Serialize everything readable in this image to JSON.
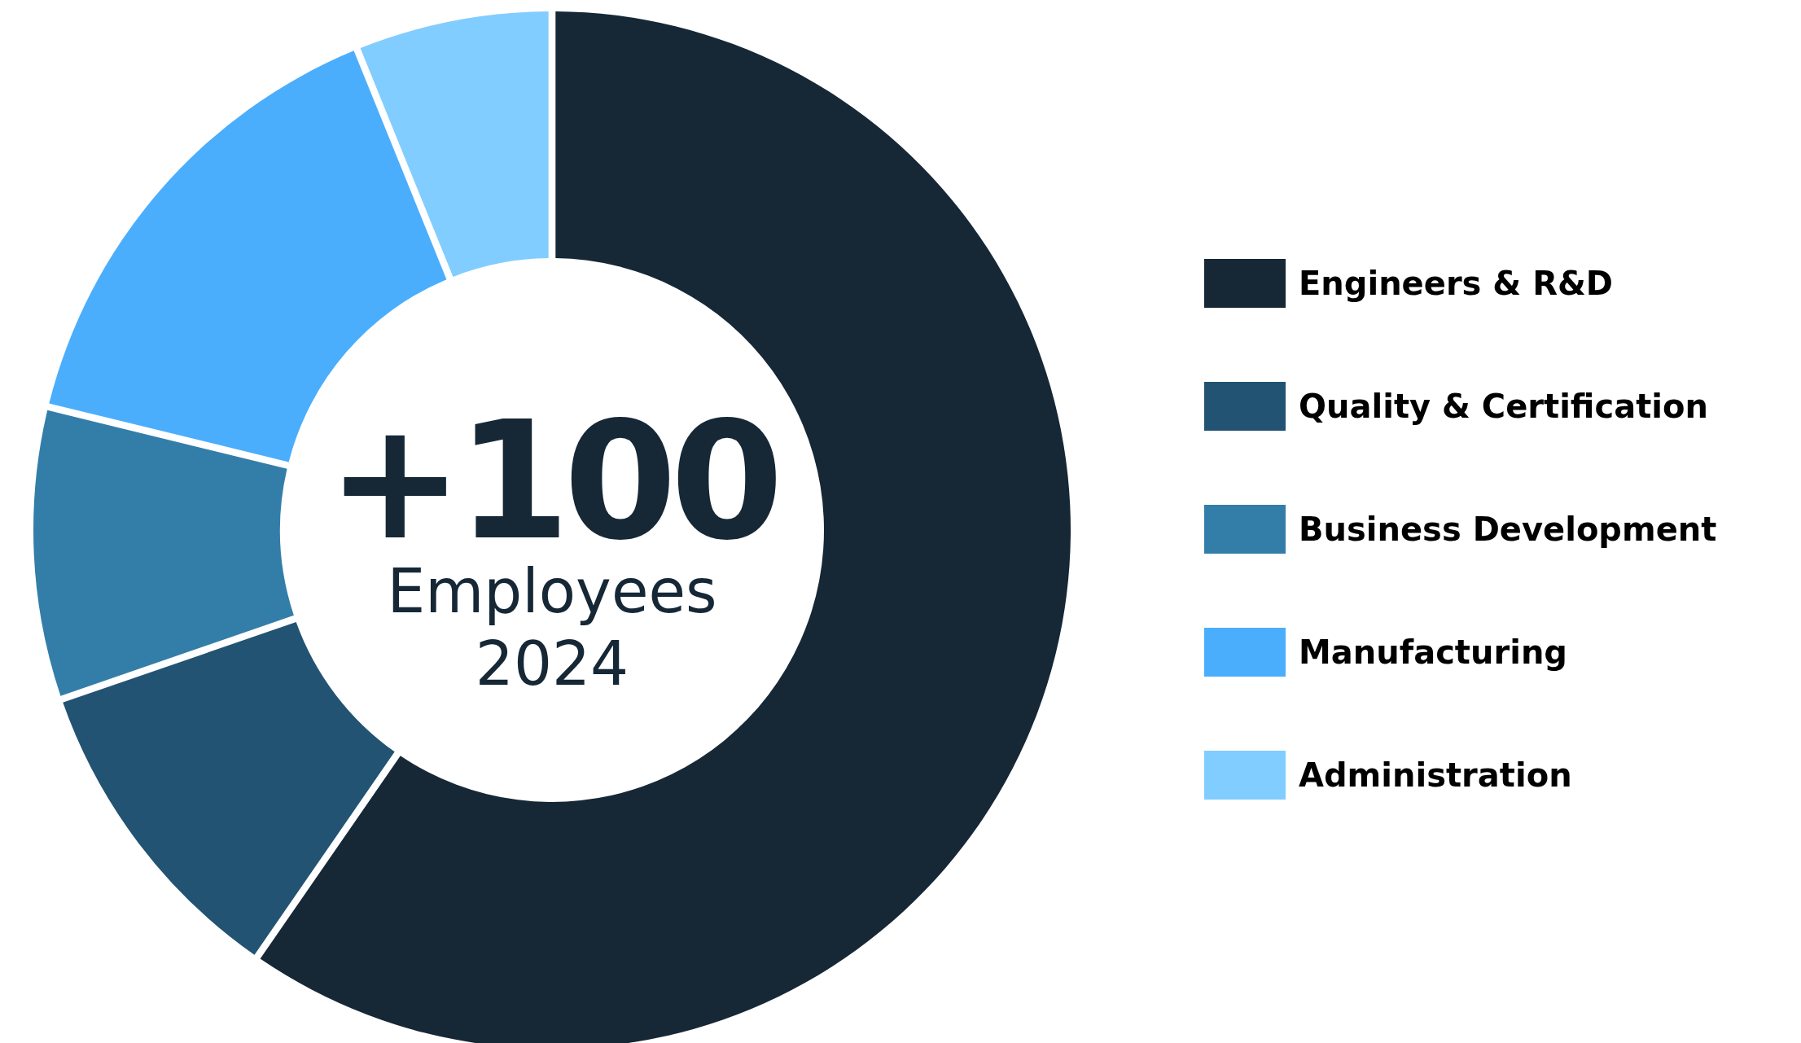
{
  "chart_data": {
    "type": "donut",
    "title": "+100",
    "annotations": [
      "Employees",
      "2024"
    ],
    "categories": [
      "Engineers & R&D",
      "Quality & Certification",
      "Business Development",
      "Manufacturing",
      "Administration"
    ],
    "values": [
      60,
      10,
      9,
      15,
      6
    ],
    "colors": [
      "#162736",
      "#225373",
      "#337ea9",
      "#4baefd",
      "#82cdff"
    ],
    "legend": "right"
  }
}
